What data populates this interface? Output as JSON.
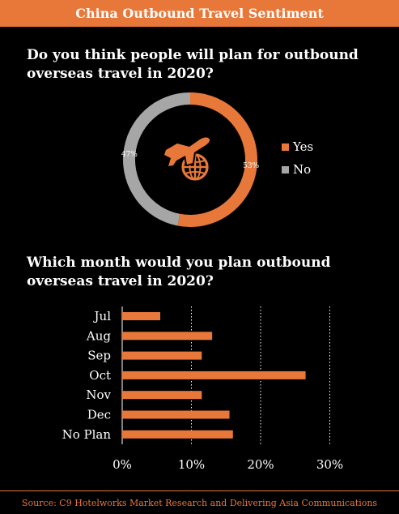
{
  "header": {
    "title": "China Outbound Travel Sentiment"
  },
  "footer": {
    "source": "Source: C9 Hotelworks Market Research and Delivering Asia Communications"
  },
  "colors": {
    "accent": "#e8783a",
    "secondary": "#a6a6a6",
    "background": "#000000"
  },
  "center_icon": "airplane-globe-icon",
  "chart_data": [
    {
      "type": "pie",
      "title": "Do you think people will plan for outbound overseas travel in 2020?",
      "donut": true,
      "slices": [
        {
          "label": "Yes",
          "value": 53,
          "display": "53%",
          "color": "#e8783a"
        },
        {
          "label": "No",
          "value": 47,
          "display": "47%",
          "color": "#a6a6a6"
        }
      ],
      "legend_placement": "right"
    },
    {
      "type": "bar",
      "orientation": "horizontal",
      "title": "Which month would you plan outbound overseas travel in 2020?",
      "categories": [
        "Jul",
        "Aug",
        "Sep",
        "Oct",
        "Nov",
        "Dec",
        "No Plan"
      ],
      "values": [
        5.5,
        13,
        11.5,
        26.5,
        11.5,
        15.5,
        16
      ],
      "xlim": [
        0,
        30
      ],
      "xticks": [
        "0%",
        "10%",
        "20%",
        "30%"
      ],
      "xtick_values": [
        0,
        10,
        20,
        30
      ],
      "grid": "vertical dotted",
      "color": "#e8783a"
    }
  ]
}
